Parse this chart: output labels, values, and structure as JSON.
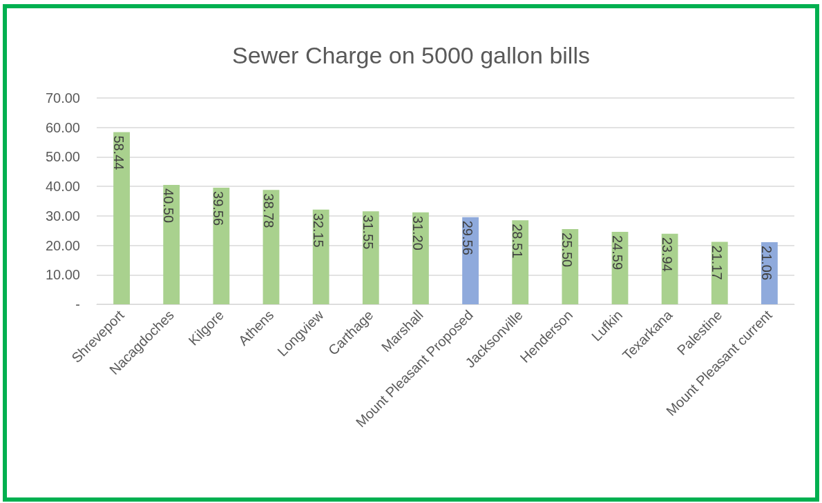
{
  "chart_data": {
    "type": "bar",
    "title": "Sewer Charge on 5000 gallon bills",
    "categories": [
      "Shreveport",
      "Nacagdoches",
      "Kilgore",
      "Athens",
      "Longview",
      "Carthage",
      "Marshall",
      "Mount Pleasant Proposed",
      "Jacksonville",
      "Henderson",
      "Lufkin",
      "Texarkana",
      "Palestine",
      "Mount Pleasant current"
    ],
    "values": [
      58.44,
      40.5,
      39.56,
      38.78,
      32.15,
      31.55,
      31.2,
      29.56,
      28.51,
      25.5,
      24.59,
      23.94,
      21.17,
      21.06
    ],
    "value_labels": [
      "58.44",
      "40.50",
      "39.56",
      "38.78",
      "32.15",
      "31.55",
      "31.20",
      "29.56",
      "28.51",
      "25.50",
      "24.59",
      "23.94",
      "21.17",
      "21.06"
    ],
    "colors": [
      "#a9d18e",
      "#a9d18e",
      "#a9d18e",
      "#a9d18e",
      "#a9d18e",
      "#a9d18e",
      "#a9d18e",
      "#8faadc",
      "#a9d18e",
      "#a9d18e",
      "#a9d18e",
      "#a9d18e",
      "#a9d18e",
      "#8faadc"
    ],
    "ylim": [
      0,
      70
    ],
    "yticks": [
      {
        "value": 0,
        "label": "-"
      },
      {
        "value": 10,
        "label": "10.00"
      },
      {
        "value": 20,
        "label": "20.00"
      },
      {
        "value": 30,
        "label": "30.00"
      },
      {
        "value": 40,
        "label": "40.00"
      },
      {
        "value": 50,
        "label": "50.00"
      },
      {
        "value": 60,
        "label": "60.00"
      },
      {
        "value": 70,
        "label": "70.00"
      }
    ],
    "grid": "y"
  }
}
